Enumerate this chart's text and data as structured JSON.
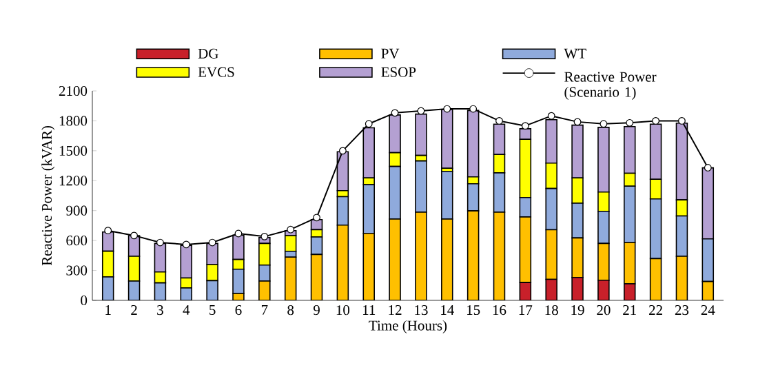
{
  "chart_data": {
    "type": "bar",
    "stacked": true,
    "xlabel": "Time (Hours)",
    "ylabel": "Reactive Power (kVAR)",
    "categories": [
      "1",
      "2",
      "3",
      "4",
      "5",
      "6",
      "7",
      "8",
      "9",
      "10",
      "11",
      "12",
      "13",
      "14",
      "15",
      "16",
      "17",
      "18",
      "19",
      "20",
      "21",
      "22",
      "23",
      "24"
    ],
    "ylim": [
      0,
      2100
    ],
    "yticks": [
      0,
      300,
      600,
      900,
      1200,
      1500,
      1800,
      2100
    ],
    "legend": "top",
    "series": [
      {
        "name": "DG",
        "color": "#c8202a",
        "values": [
          0,
          0,
          0,
          0,
          0,
          0,
          0,
          0,
          0,
          0,
          0,
          0,
          0,
          0,
          0,
          0,
          179,
          211,
          230,
          202,
          166,
          0,
          0,
          0
        ]
      },
      {
        "name": "PV",
        "color": "#ffc000",
        "values": [
          0,
          0,
          0,
          0,
          0,
          69,
          193,
          433,
          460,
          755,
          672,
          815,
          884,
          815,
          897,
          884,
          658,
          497,
          396,
          369,
          414,
          419,
          442,
          189
        ]
      },
      {
        "name": "WT",
        "color": "#8faadc",
        "values": [
          235,
          193,
          175,
          124,
          198,
          244,
          161,
          59,
          175,
          285,
          488,
          528,
          514,
          478,
          272,
          395,
          194,
          414,
          349,
          322,
          565,
          598,
          404,
          428
        ]
      },
      {
        "name": "EVCS",
        "color": "#ffff00",
        "values": [
          258,
          249,
          110,
          101,
          161,
          97,
          217,
          157,
          74,
          60,
          68,
          138,
          55,
          32,
          69,
          184,
          584,
          254,
          253,
          193,
          129,
          197,
          162,
          0
        ]
      },
      {
        "name": "ESOP",
        "color": "#b4a0d2",
        "values": [
          193,
          207,
          286,
          327,
          212,
          243,
          59,
          50,
          101,
          390,
          502,
          378,
          415,
          589,
          666,
          304,
          106,
          436,
          529,
          649,
          469,
          553,
          769,
          712
        ]
      },
      {
        "name": "Reactive Power (Scenario 1)",
        "type": "line",
        "marker": "circle",
        "line_style": "solid",
        "color": "#000000",
        "values": [
          700,
          650,
          580,
          560,
          580,
          670,
          640,
          710,
          830,
          1500,
          1770,
          1880,
          1900,
          1920,
          1920,
          1800,
          1750,
          1850,
          1790,
          1770,
          1780,
          1800,
          1800,
          1330
        ]
      }
    ]
  }
}
